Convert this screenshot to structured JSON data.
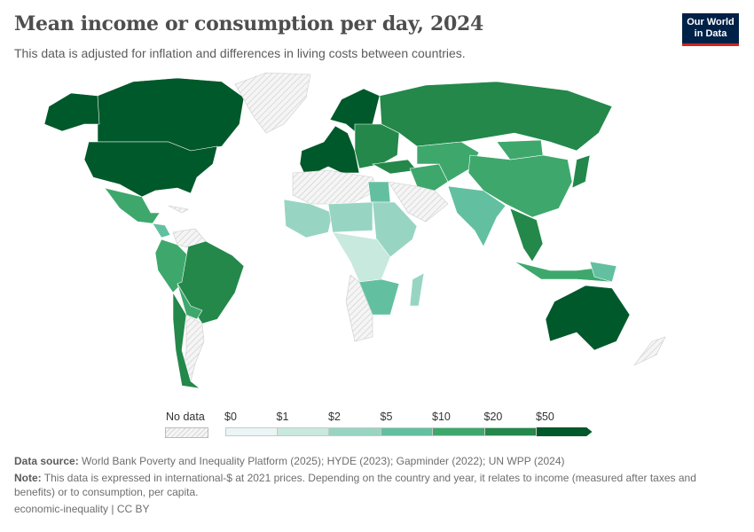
{
  "header": {
    "title": "Mean income or consumption per day, 2024",
    "subtitle": "This data is adjusted for inflation and differences in living costs between countries.",
    "logo": "Our World in Data"
  },
  "legend": {
    "no_data_label": "No data",
    "bins": [
      "$0",
      "$1",
      "$2",
      "$5",
      "$10",
      "$20",
      "$50"
    ],
    "colors": [
      "#eaf6f5",
      "#c8e9dd",
      "#97d5c2",
      "#62c0a1",
      "#3ea86c",
      "#23884a",
      "#00592a"
    ],
    "no_data_color": "hatched-grey"
  },
  "map": {
    "regions": [
      {
        "name": "canada",
        "bin": 6
      },
      {
        "name": "united-states",
        "bin": 6
      },
      {
        "name": "alaska",
        "bin": 6
      },
      {
        "name": "greenland",
        "bin": -1
      },
      {
        "name": "mexico",
        "bin": 4
      },
      {
        "name": "central-america",
        "bin": 3
      },
      {
        "name": "cuba",
        "bin": -1
      },
      {
        "name": "venezuela",
        "bin": -1
      },
      {
        "name": "colombia-peru",
        "bin": 4
      },
      {
        "name": "brazil",
        "bin": 5
      },
      {
        "name": "bolivia-paraguay",
        "bin": 4
      },
      {
        "name": "argentina",
        "bin": -1
      },
      {
        "name": "chile",
        "bin": 5
      },
      {
        "name": "western-europe",
        "bin": 6
      },
      {
        "name": "scandinavia",
        "bin": 6
      },
      {
        "name": "eastern-europe",
        "bin": 5
      },
      {
        "name": "russia",
        "bin": 5
      },
      {
        "name": "turkey",
        "bin": 5
      },
      {
        "name": "middle-east",
        "bin": 4
      },
      {
        "name": "arabia",
        "bin": -1
      },
      {
        "name": "central-asia",
        "bin": 4
      },
      {
        "name": "china",
        "bin": 4
      },
      {
        "name": "mongolia",
        "bin": 4
      },
      {
        "name": "india",
        "bin": 3
      },
      {
        "name": "southeast-asia",
        "bin": 5
      },
      {
        "name": "indonesia",
        "bin": 4
      },
      {
        "name": "japan",
        "bin": 5
      },
      {
        "name": "north-africa",
        "bin": -1
      },
      {
        "name": "egypt",
        "bin": 3
      },
      {
        "name": "west-africa",
        "bin": 2
      },
      {
        "name": "sahel",
        "bin": 2
      },
      {
        "name": "east-africa",
        "bin": 2
      },
      {
        "name": "central-africa",
        "bin": 1
      },
      {
        "name": "southern-africa",
        "bin": 3
      },
      {
        "name": "south-west-africa",
        "bin": -1
      },
      {
        "name": "madagascar",
        "bin": 2
      },
      {
        "name": "australia",
        "bin": 6
      },
      {
        "name": "new-zealand",
        "bin": -1
      },
      {
        "name": "papua",
        "bin": 3
      }
    ]
  },
  "footer": {
    "source_label": "Data source:",
    "source_text": "World Bank Poverty and Inequality Platform (2025); HYDE (2023); Gapminder (2022); UN WPP (2024)",
    "note_label": "Note:",
    "note_text": "This data is expressed in international-$ at 2021 prices. Depending on the country and year, it relates to income (measured after taxes and benefits) or to consumption, per capita.",
    "license": "economic-inequality | CC BY"
  }
}
